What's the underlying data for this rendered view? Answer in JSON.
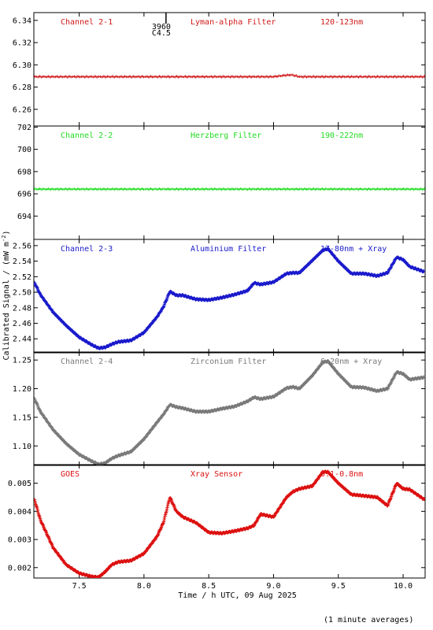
{
  "chart_data": {
    "type": "scatter",
    "xlabel": "Time / h UTC, 09 Aug 2025",
    "ylabel": "Calibrated Signal / (mW m",
    "ylabel_sup": "-2",
    "ylabel_end": ")",
    "footnote": "(1 minute averages)",
    "xlim": [
      7.15,
      10.17
    ],
    "xticks": [
      "7.5",
      "8.0",
      "8.5",
      "9.0",
      "9.5",
      "10.0"
    ],
    "xtick_values": [
      7.5,
      8.0,
      8.5,
      9.0,
      9.5,
      10.0
    ],
    "marker_annotation": {
      "x": 8.17,
      "line1": "3960",
      "line2": "C4.5"
    },
    "panels": [
      {
        "name": "Channel 2-1",
        "filter": "Lyman-alpha Filter",
        "band": "120-123nm",
        "color": "#d01818",
        "ylim": [
          6.245,
          6.347
        ],
        "yticks": [
          "6.34",
          "6.32",
          "6.30",
          "6.28",
          "6.26"
        ],
        "ytick_values": [
          6.34,
          6.32,
          6.3,
          6.28,
          6.26
        ],
        "profile_x": [
          7.15,
          9.0,
          9.08,
          9.14,
          9.2,
          10.17
        ],
        "profile_y": [
          6.2893,
          6.2893,
          6.2905,
          6.291,
          6.2893,
          6.2893
        ],
        "density": 2.2
      },
      {
        "name": "Channel 2-2",
        "filter": "Herzberg Filter",
        "band": "190-222nm",
        "color": "#22dd22",
        "ylim": [
          691.9,
          702.1
        ],
        "yticks": [
          "702",
          "700",
          "698",
          "696",
          "694"
        ],
        "ytick_values": [
          702,
          700,
          698,
          696,
          694
        ],
        "profile_x": [
          7.15,
          10.17
        ],
        "profile_y": [
          696.42,
          696.42
        ],
        "density": 2.2
      },
      {
        "name": "Channel 2-3",
        "filter": "Aluminium Filter",
        "band": "17-80nm + Xray",
        "color": "#1a1acc",
        "ylim": [
          2.422,
          2.568
        ],
        "yticks": [
          "2.56",
          "2.54",
          "2.52",
          "2.50",
          "2.48",
          "2.46",
          "2.44"
        ],
        "ytick_values": [
          2.56,
          2.54,
          2.52,
          2.5,
          2.48,
          2.46,
          2.44
        ],
        "profile_x": [
          7.15,
          7.2,
          7.3,
          7.4,
          7.5,
          7.6,
          7.65,
          7.7,
          7.75,
          7.8,
          7.9,
          8.0,
          8.1,
          8.15,
          8.2,
          8.25,
          8.3,
          8.4,
          8.5,
          8.6,
          8.7,
          8.8,
          8.85,
          8.9,
          9.0,
          9.1,
          9.15,
          9.2,
          9.3,
          9.38,
          9.42,
          9.5,
          9.6,
          9.7,
          9.8,
          9.88,
          9.95,
          10.0,
          10.05,
          10.17
        ],
        "profile_y": [
          2.514,
          2.497,
          2.474,
          2.457,
          2.442,
          2.432,
          2.428,
          2.429,
          2.433,
          2.436,
          2.438,
          2.448,
          2.468,
          2.481,
          2.501,
          2.496,
          2.496,
          2.491,
          2.49,
          2.493,
          2.497,
          2.502,
          2.512,
          2.51,
          2.513,
          2.524,
          2.525,
          2.525,
          2.541,
          2.554,
          2.556,
          2.54,
          2.524,
          2.524,
          2.521,
          2.525,
          2.545,
          2.542,
          2.533,
          2.526
        ],
        "density": 0.55
      },
      {
        "name": "Channel 2-4",
        "filter": "Zirconium Filter",
        "band": "6-20nm + Xray",
        "color": "#7a7a7a",
        "ylim": [
          1.066,
          1.264
        ],
        "yticks": [
          "1.25",
          "1.20",
          "1.15",
          "1.10"
        ],
        "ytick_values": [
          1.25,
          1.2,
          1.15,
          1.1
        ],
        "profile_x": [
          7.15,
          7.2,
          7.3,
          7.4,
          7.5,
          7.6,
          7.65,
          7.7,
          7.75,
          7.8,
          7.9,
          8.0,
          8.1,
          8.15,
          8.2,
          8.25,
          8.3,
          8.4,
          8.5,
          8.6,
          8.7,
          8.8,
          8.85,
          8.9,
          9.0,
          9.1,
          9.15,
          9.2,
          9.3,
          9.38,
          9.42,
          9.5,
          9.6,
          9.7,
          9.8,
          9.88,
          9.95,
          10.0,
          10.05,
          10.17
        ],
        "profile_y": [
          1.185,
          1.16,
          1.128,
          1.104,
          1.085,
          1.073,
          1.068,
          1.07,
          1.078,
          1.083,
          1.09,
          1.112,
          1.141,
          1.155,
          1.172,
          1.168,
          1.166,
          1.16,
          1.16,
          1.165,
          1.169,
          1.178,
          1.185,
          1.182,
          1.186,
          1.201,
          1.203,
          1.2,
          1.223,
          1.246,
          1.248,
          1.226,
          1.203,
          1.202,
          1.196,
          1.2,
          1.229,
          1.226,
          1.216,
          1.22
        ],
        "density": 0.55
      },
      {
        "name": "GOES",
        "filter": "Xray Sensor",
        "band": "0.1-0.8nm",
        "color": "#dd1111",
        "ylim": [
          0.00163,
          0.00566
        ],
        "yticks": [
          "0.005",
          "0.004",
          "0.003",
          "0.002"
        ],
        "ytick_values": [
          0.005,
          0.004,
          0.003,
          0.002
        ],
        "profile_x": [
          7.15,
          7.2,
          7.3,
          7.4,
          7.5,
          7.6,
          7.65,
          7.7,
          7.75,
          7.8,
          7.9,
          8.0,
          8.1,
          8.15,
          8.2,
          8.25,
          8.3,
          8.4,
          8.5,
          8.6,
          8.7,
          8.8,
          8.85,
          8.9,
          9.0,
          9.1,
          9.15,
          9.2,
          9.3,
          9.38,
          9.42,
          9.5,
          9.6,
          9.7,
          9.8,
          9.88,
          9.95,
          10.0,
          10.05,
          10.17
        ],
        "profile_y": [
          0.0045,
          0.0037,
          0.0027,
          0.0021,
          0.0018,
          0.00168,
          0.00166,
          0.00185,
          0.0021,
          0.0022,
          0.00225,
          0.0025,
          0.0031,
          0.0036,
          0.0045,
          0.004,
          0.0038,
          0.0036,
          0.00325,
          0.00322,
          0.0033,
          0.0034,
          0.0035,
          0.0039,
          0.0038,
          0.0045,
          0.0047,
          0.0048,
          0.0049,
          0.0054,
          0.0054,
          0.005,
          0.0046,
          0.00455,
          0.0045,
          0.0042,
          0.005,
          0.0048,
          0.00478,
          0.0044
        ],
        "density": 0.5
      }
    ]
  }
}
